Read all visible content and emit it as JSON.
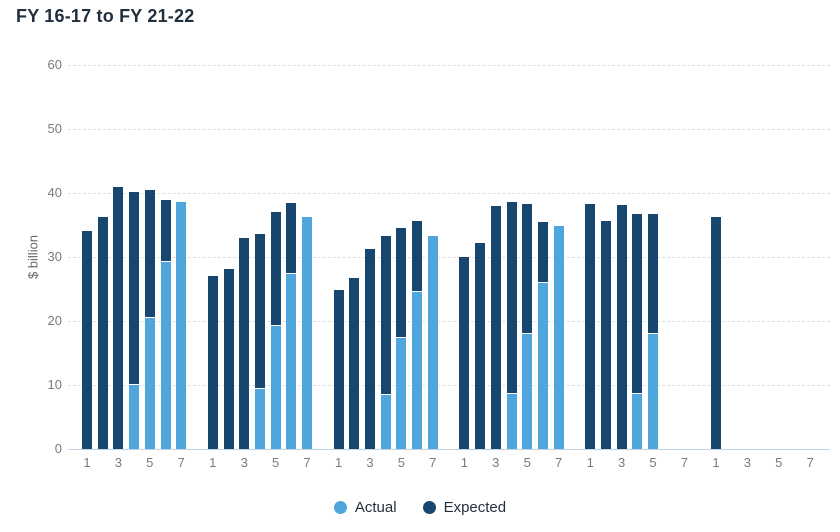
{
  "page": {
    "background": "#ffffff"
  },
  "chart_data": {
    "type": "bar",
    "title": "FY 16-17 to FY 21-22",
    "ylabel": "$ billion",
    "ylim": [
      0,
      60
    ],
    "yticks": [
      0,
      10,
      20,
      30,
      40,
      50,
      60
    ],
    "grid": "horizontal-dashed",
    "legend_position": "bottom-center",
    "x_tick_labels": [
      "1",
      "3",
      "5",
      "7"
    ],
    "group_slot_count": 7,
    "legend": [
      {
        "label": "Actual",
        "color": "#4FA6DC"
      },
      {
        "label": "Expected",
        "color": "#17476F"
      }
    ],
    "groups": [
      {
        "expected": [
          34.0,
          36.3,
          41.0,
          40.0,
          40.3,
          38.8,
          38.6
        ],
        "actual": [
          null,
          null,
          null,
          10.0,
          20.5,
          29.2,
          38.6
        ]
      },
      {
        "expected": [
          27.0,
          28.2,
          33.0,
          33.4,
          36.9,
          38.3,
          36.2
        ],
        "actual": [
          null,
          null,
          null,
          9.4,
          19.2,
          27.3,
          36.2
        ]
      },
      {
        "expected": [
          24.8,
          26.7,
          31.3,
          33.1,
          34.3,
          35.4,
          33.3
        ],
        "actual": [
          null,
          null,
          null,
          8.5,
          17.3,
          24.6,
          33.3
        ]
      },
      {
        "expected": [
          30.0,
          32.2,
          38.0,
          38.4,
          38.1,
          35.3,
          34.9
        ],
        "actual": [
          null,
          null,
          null,
          8.6,
          18.0,
          26.0,
          34.9
        ]
      },
      {
        "expected": [
          38.3,
          35.7,
          38.1,
          36.6,
          36.5,
          null,
          null
        ],
        "actual": [
          null,
          null,
          null,
          8.6,
          17.9,
          null,
          null
        ]
      },
      {
        "expected": [
          36.2,
          null,
          null,
          null,
          null,
          null,
          null
        ],
        "actual": [
          null,
          null,
          null,
          null,
          null,
          null,
          null
        ]
      }
    ]
  }
}
